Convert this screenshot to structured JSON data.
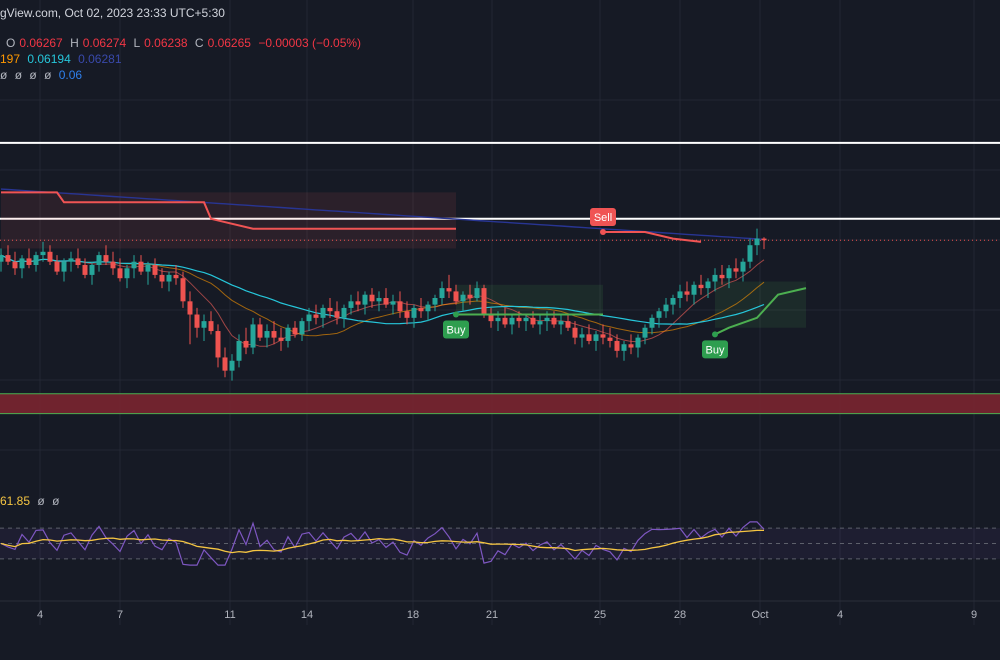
{
  "header": {
    "source_line": "gView.com, Oct 02, 2023 23:33 UTC+5:30",
    "ohlc": {
      "o_label": "O",
      "o": "0.06267",
      "h_label": "H",
      "h": "0.06274",
      "l_label": "L",
      "l": "0.06238",
      "c_label": "C",
      "c": "0.06265",
      "change": "−0.00003 (−0.05%)"
    },
    "ma_values": [
      "197",
      "0.06194",
      "0.06281"
    ],
    "indicator_line": [
      "ø",
      "ø",
      "ø",
      "ø"
    ],
    "indicator_value": "0.06"
  },
  "rsi": {
    "value": "61.85",
    "extra": [
      "ø",
      "ø"
    ]
  },
  "signals": [
    {
      "label": "Buy",
      "color": "#2e9e4f"
    },
    {
      "label": "Sell",
      "color": "#f05454"
    },
    {
      "label": "Buy",
      "color": "#2e9e4f"
    }
  ],
  "colors": {
    "background": "#161a25",
    "up": "#26a69a",
    "down": "#ef5350",
    "supertrend_down": "#f05454",
    "supertrend_up": "#4caf50",
    "ma_teal": "#26c6da",
    "ma_navy": "#283593",
    "ma_orange": "#ff9800",
    "rsi_line": "#7e57c2",
    "rsi_ma": "#f5c542",
    "zone": "#7a2530"
  },
  "chart_data": {
    "type": "candlestick",
    "x_tick_labels": [
      "4",
      "7",
      "11",
      "14",
      "18",
      "21",
      "25",
      "28",
      "Oct",
      "4",
      "9"
    ],
    "candles": [
      [
        0.062,
        0.0624,
        0.0617,
        0.0622
      ],
      [
        0.0622,
        0.0625,
        0.0619,
        0.062
      ],
      [
        0.062,
        0.0623,
        0.0616,
        0.0618
      ],
      [
        0.0618,
        0.0622,
        0.0615,
        0.0621
      ],
      [
        0.0621,
        0.0624,
        0.0618,
        0.0619
      ],
      [
        0.0619,
        0.0623,
        0.0617,
        0.0622
      ],
      [
        0.0622,
        0.0626,
        0.062,
        0.0623
      ],
      [
        0.0623,
        0.0625,
        0.0619,
        0.062
      ],
      [
        0.062,
        0.0622,
        0.0616,
        0.0617
      ],
      [
        0.0617,
        0.0621,
        0.0614,
        0.062
      ],
      [
        0.062,
        0.0623,
        0.0617,
        0.0621
      ],
      [
        0.0621,
        0.0624,
        0.0618,
        0.0619
      ],
      [
        0.0619,
        0.0621,
        0.0615,
        0.0616
      ],
      [
        0.0616,
        0.062,
        0.0613,
        0.0619
      ],
      [
        0.0619,
        0.0623,
        0.0617,
        0.0622
      ],
      [
        0.0622,
        0.0625,
        0.0619,
        0.062
      ],
      [
        0.062,
        0.0623,
        0.0616,
        0.0618
      ],
      [
        0.0618,
        0.0621,
        0.0614,
        0.0615
      ],
      [
        0.0615,
        0.0619,
        0.0612,
        0.0618
      ],
      [
        0.0618,
        0.0622,
        0.0615,
        0.062
      ],
      [
        0.062,
        0.0622,
        0.0616,
        0.0617
      ],
      [
        0.0617,
        0.062,
        0.0613,
        0.0619
      ],
      [
        0.0619,
        0.0621,
        0.0615,
        0.0616
      ],
      [
        0.0616,
        0.0618,
        0.0612,
        0.0614
      ],
      [
        0.0614,
        0.0617,
        0.0611,
        0.0616
      ],
      [
        0.0616,
        0.0619,
        0.0613,
        0.0615
      ],
      [
        0.0615,
        0.0617,
        0.0606,
        0.0608
      ],
      [
        0.0608,
        0.0611,
        0.0595,
        0.0604
      ],
      [
        0.0604,
        0.0606,
        0.0597,
        0.06
      ],
      [
        0.06,
        0.0604,
        0.0596,
        0.0602
      ],
      [
        0.0602,
        0.0605,
        0.0598,
        0.0599
      ],
      [
        0.0599,
        0.0601,
        0.0588,
        0.0591
      ],
      [
        0.0591,
        0.0594,
        0.0585,
        0.0587
      ],
      [
        0.0587,
        0.0592,
        0.0584,
        0.059
      ],
      [
        0.059,
        0.0598,
        0.0588,
        0.0596
      ],
      [
        0.0596,
        0.06,
        0.0592,
        0.0594
      ],
      [
        0.0594,
        0.0603,
        0.0592,
        0.0601
      ],
      [
        0.0601,
        0.0603,
        0.0596,
        0.0597
      ],
      [
        0.0597,
        0.0601,
        0.0594,
        0.0599
      ],
      [
        0.0599,
        0.0602,
        0.0595,
        0.0597
      ],
      [
        0.0597,
        0.06,
        0.0593,
        0.0596
      ],
      [
        0.0596,
        0.0601,
        0.0594,
        0.06
      ],
      [
        0.06,
        0.0602,
        0.0597,
        0.0598
      ],
      [
        0.0598,
        0.0603,
        0.0596,
        0.0602
      ],
      [
        0.0602,
        0.0606,
        0.0599,
        0.0604
      ],
      [
        0.0604,
        0.0607,
        0.0601,
        0.0603
      ],
      [
        0.0603,
        0.0607,
        0.06,
        0.0606
      ],
      [
        0.0606,
        0.0609,
        0.0603,
        0.0605
      ],
      [
        0.0605,
        0.0608,
        0.0601,
        0.0603
      ],
      [
        0.0603,
        0.0607,
        0.06,
        0.0606
      ],
      [
        0.0606,
        0.061,
        0.0604,
        0.0608
      ],
      [
        0.0608,
        0.0611,
        0.0605,
        0.0607
      ],
      [
        0.0607,
        0.0611,
        0.0604,
        0.061
      ],
      [
        0.061,
        0.0612,
        0.0606,
        0.0608
      ],
      [
        0.0608,
        0.0611,
        0.0605,
        0.0609
      ],
      [
        0.0609,
        0.0612,
        0.0606,
        0.0607
      ],
      [
        0.0607,
        0.061,
        0.0604,
        0.0608
      ],
      [
        0.0608,
        0.0611,
        0.0603,
        0.0605
      ],
      [
        0.0605,
        0.0608,
        0.0601,
        0.0603
      ],
      [
        0.0603,
        0.0607,
        0.06,
        0.0606
      ],
      [
        0.0606,
        0.0609,
        0.0603,
        0.0605
      ],
      [
        0.0605,
        0.0608,
        0.0602,
        0.0607
      ],
      [
        0.0607,
        0.061,
        0.0605,
        0.0609
      ],
      [
        0.0609,
        0.0614,
        0.0607,
        0.0612
      ],
      [
        0.0612,
        0.0616,
        0.0609,
        0.0611
      ],
      [
        0.0611,
        0.0613,
        0.0607,
        0.0608
      ],
      [
        0.0608,
        0.0611,
        0.0605,
        0.061
      ],
      [
        0.061,
        0.0613,
        0.0607,
        0.0609
      ],
      [
        0.0609,
        0.0614,
        0.0608,
        0.0612
      ],
      [
        0.0612,
        0.0613,
        0.0603,
        0.0604
      ],
      [
        0.0604,
        0.0606,
        0.06,
        0.0602
      ],
      [
        0.0602,
        0.0605,
        0.0599,
        0.0603
      ],
      [
        0.0603,
        0.0606,
        0.06,
        0.0601
      ],
      [
        0.0601,
        0.0604,
        0.0598,
        0.0603
      ],
      [
        0.0603,
        0.0605,
        0.06,
        0.0602
      ],
      [
        0.0602,
        0.0604,
        0.0599,
        0.0603
      ],
      [
        0.0603,
        0.0605,
        0.06,
        0.0601
      ],
      [
        0.0601,
        0.0604,
        0.0598,
        0.0602
      ],
      [
        0.0602,
        0.0605,
        0.0599,
        0.0603
      ],
      [
        0.0603,
        0.0605,
        0.06,
        0.0601
      ],
      [
        0.0601,
        0.0604,
        0.0598,
        0.0602
      ],
      [
        0.0602,
        0.0604,
        0.0599,
        0.06
      ],
      [
        0.06,
        0.0602,
        0.0595,
        0.0597
      ],
      [
        0.0597,
        0.06,
        0.0594,
        0.0598
      ],
      [
        0.0598,
        0.0601,
        0.0595,
        0.0596
      ],
      [
        0.0596,
        0.0599,
        0.0593,
        0.0598
      ],
      [
        0.0598,
        0.0601,
        0.0595,
        0.0597
      ],
      [
        0.0597,
        0.06,
        0.0594,
        0.0596
      ],
      [
        0.0596,
        0.0598,
        0.0591,
        0.0593
      ],
      [
        0.0593,
        0.0596,
        0.059,
        0.0595
      ],
      [
        0.0595,
        0.0598,
        0.0592,
        0.0594
      ],
      [
        0.0594,
        0.0598,
        0.0591,
        0.0597
      ],
      [
        0.0597,
        0.0601,
        0.0595,
        0.06
      ],
      [
        0.06,
        0.0604,
        0.0598,
        0.0603
      ],
      [
        0.0603,
        0.0606,
        0.06,
        0.0605
      ],
      [
        0.0605,
        0.0609,
        0.0603,
        0.0607
      ],
      [
        0.0607,
        0.061,
        0.0604,
        0.0609
      ],
      [
        0.0609,
        0.0613,
        0.0606,
        0.0611
      ],
      [
        0.0611,
        0.0614,
        0.0608,
        0.061
      ],
      [
        0.061,
        0.0614,
        0.0607,
        0.0613
      ],
      [
        0.0613,
        0.0616,
        0.061,
        0.0612
      ],
      [
        0.0612,
        0.0615,
        0.0609,
        0.0614
      ],
      [
        0.0614,
        0.0618,
        0.0611,
        0.0616
      ],
      [
        0.0616,
        0.0619,
        0.0613,
        0.0615
      ],
      [
        0.0615,
        0.0619,
        0.0612,
        0.0618
      ],
      [
        0.0618,
        0.0621,
        0.0615,
        0.0617
      ],
      [
        0.0617,
        0.0621,
        0.0614,
        0.062
      ],
      [
        0.062,
        0.0627,
        0.0618,
        0.0625
      ],
      [
        0.0625,
        0.063,
        0.0622,
        0.0627
      ],
      [
        0.0627,
        0.06274,
        0.06238,
        0.06265
      ]
    ],
    "price_levels": [
      0.0656,
      0.0633
    ],
    "zone": [
      0.058,
      0.0574
    ],
    "rsi_bands": [
      70,
      50,
      30
    ]
  }
}
